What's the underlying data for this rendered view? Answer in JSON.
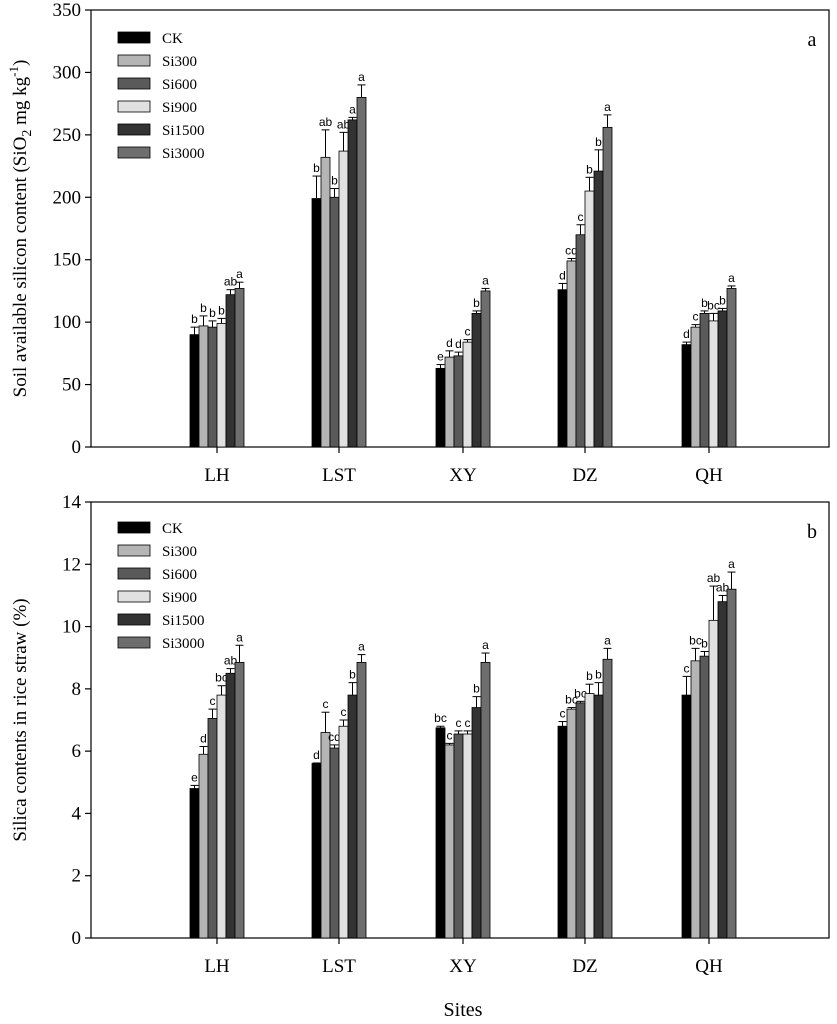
{
  "figure": {
    "xlabel": "Sites"
  },
  "chart_data": [
    {
      "type": "bar",
      "panel_label": "a",
      "title": "",
      "xlabel": "",
      "ylabel": "Soil available silicon content (SiO2 mg kg-1)",
      "ylabel_parts": {
        "main": "Soil available silicon content (SiO",
        "sub": "2",
        "mid": " mg kg",
        "sup": "-1",
        "end": ")"
      },
      "ylim": [
        0,
        350
      ],
      "yticks": [
        0,
        50,
        100,
        150,
        200,
        250,
        300,
        350
      ],
      "ytick_labels": [
        "0",
        "50",
        "100",
        "150",
        "200",
        "250",
        "300",
        "350"
      ],
      "categories": [
        "LH",
        "LST",
        "XY",
        "DZ",
        "QH"
      ],
      "legend_position": "top-left",
      "grid": false,
      "series": [
        {
          "name": "CK",
          "color": "#000000",
          "values": [
            90,
            199,
            63,
            126,
            82
          ],
          "errors": [
            6,
            18,
            3,
            5,
            2
          ],
          "letters": [
            "b",
            "b",
            "e",
            "d",
            "d"
          ]
        },
        {
          "name": "Si300",
          "color": "#b5b5b5",
          "values": [
            97,
            232,
            72,
            149,
            96
          ],
          "errors": [
            8,
            22,
            5,
            2,
            2
          ],
          "letters": [
            "b",
            "ab",
            "d",
            "cd",
            "c"
          ]
        },
        {
          "name": "Si600",
          "color": "#5a5a5a",
          "values": [
            96,
            200,
            73,
            170,
            107
          ],
          "errors": [
            5,
            7,
            3,
            8,
            2
          ],
          "letters": [
            "b",
            "b",
            "d",
            "c",
            "b"
          ]
        },
        {
          "name": "Si900",
          "color": "#e1e1e1",
          "values": [
            99,
            237,
            84,
            205,
            101
          ],
          "errors": [
            4,
            15,
            2,
            11,
            6
          ],
          "letters": [
            "b",
            "ab",
            "c",
            "b",
            "bc"
          ]
        },
        {
          "name": "Si1500",
          "color": "#333333",
          "values": [
            122,
            262,
            107,
            221,
            109
          ],
          "errors": [
            4,
            2,
            2,
            17,
            2
          ],
          "letters": [
            "ab",
            "a",
            "b",
            "b",
            "b"
          ]
        },
        {
          "name": "Si3000",
          "color": "#6e6e6e",
          "values": [
            127,
            280,
            125,
            256,
            127
          ],
          "errors": [
            5,
            10,
            2,
            10,
            2
          ],
          "letters": [
            "a",
            "a",
            "a",
            "a",
            "a"
          ]
        }
      ]
    },
    {
      "type": "bar",
      "panel_label": "b",
      "title": "",
      "xlabel": "Sites",
      "ylabel": "Silica contents in rice straw (%)",
      "ylim": [
        0,
        14
      ],
      "yticks": [
        0,
        2,
        4,
        6,
        8,
        10,
        12,
        14
      ],
      "ytick_labels": [
        "0",
        "2",
        "4",
        "6",
        "8",
        "10",
        "12",
        "14"
      ],
      "categories": [
        "LH",
        "LST",
        "XY",
        "DZ",
        "QH"
      ],
      "legend_position": "top-left",
      "grid": false,
      "series": [
        {
          "name": "CK",
          "color": "#000000",
          "values": [
            4.8,
            5.6,
            6.75,
            6.8,
            7.8
          ],
          "errors": [
            0.1,
            0.02,
            0.05,
            0.15,
            0.6
          ],
          "letters": [
            "e",
            "d",
            "bc",
            "c",
            "c"
          ]
        },
        {
          "name": "Si300",
          "color": "#b5b5b5",
          "values": [
            5.9,
            6.6,
            6.2,
            7.35,
            8.9
          ],
          "errors": [
            0.25,
            0.65,
            0.05,
            0.05,
            0.4
          ],
          "letters": [
            "d",
            "c",
            "c",
            "bc",
            "bc"
          ]
        },
        {
          "name": "Si600",
          "color": "#5a5a5a",
          "values": [
            7.05,
            6.1,
            6.55,
            7.55,
            9.05
          ],
          "errors": [
            0.3,
            0.1,
            0.1,
            0.05,
            0.15
          ],
          "letters": [
            "c",
            "cd",
            "c",
            "bc",
            "b"
          ]
        },
        {
          "name": "Si900",
          "color": "#e1e1e1",
          "values": [
            7.8,
            6.8,
            6.55,
            7.85,
            10.2
          ],
          "errors": [
            0.3,
            0.2,
            0.1,
            0.3,
            1.1
          ],
          "letters": [
            "bc",
            "c",
            "c",
            "b",
            "ab"
          ]
        },
        {
          "name": "Si1500",
          "color": "#333333",
          "values": [
            8.5,
            7.8,
            7.4,
            7.8,
            10.8
          ],
          "errors": [
            0.15,
            0.4,
            0.35,
            0.4,
            0.2
          ],
          "letters": [
            "ab",
            "b",
            "b",
            "b",
            "ab"
          ]
        },
        {
          "name": "Si3000",
          "color": "#6e6e6e",
          "values": [
            8.85,
            8.85,
            8.85,
            8.95,
            11.2
          ],
          "errors": [
            0.55,
            0.25,
            0.3,
            0.35,
            0.55
          ],
          "letters": [
            "a",
            "a",
            "a",
            "a",
            "a"
          ]
        }
      ]
    }
  ]
}
